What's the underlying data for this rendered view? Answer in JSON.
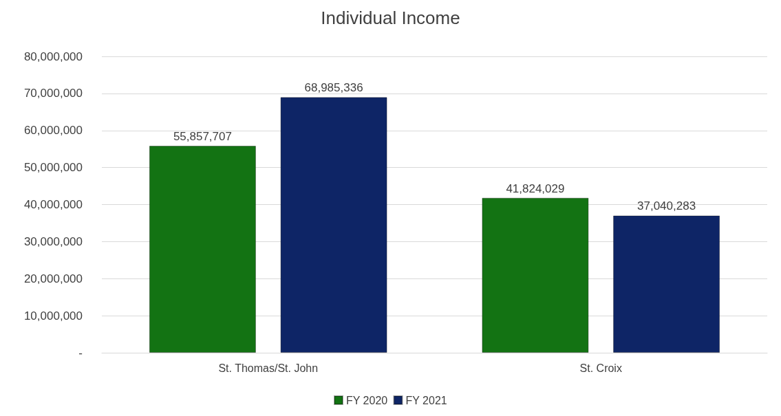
{
  "chart_data": {
    "type": "bar",
    "title": "Individual Income",
    "categories": [
      "St. Thomas/St. John",
      "St. Croix"
    ],
    "series": [
      {
        "name": "FY 2020",
        "color": "#137313",
        "values": [
          55857707,
          41824029
        ],
        "value_labels": [
          "55,857,707",
          "41,824,029"
        ]
      },
      {
        "name": "FY 2021",
        "color": "#0e2566",
        "values": [
          68985336,
          37040283
        ],
        "value_labels": [
          "68,985,336",
          "37,040,283"
        ]
      }
    ],
    "ylim": [
      0,
      80000000
    ],
    "yticks": [
      {
        "value": 0,
        "label": "-"
      },
      {
        "value": 10000000,
        "label": "10,000,000"
      },
      {
        "value": 20000000,
        "label": "20,000,000"
      },
      {
        "value": 30000000,
        "label": "30,000,000"
      },
      {
        "value": 40000000,
        "label": "40,000,000"
      },
      {
        "value": 50000000,
        "label": "50,000,000"
      },
      {
        "value": 60000000,
        "label": "60,000,000"
      },
      {
        "value": 70000000,
        "label": "70,000,000"
      },
      {
        "value": 80000000,
        "label": "80,000,000"
      }
    ],
    "grid": "y",
    "legend": "bottom"
  }
}
